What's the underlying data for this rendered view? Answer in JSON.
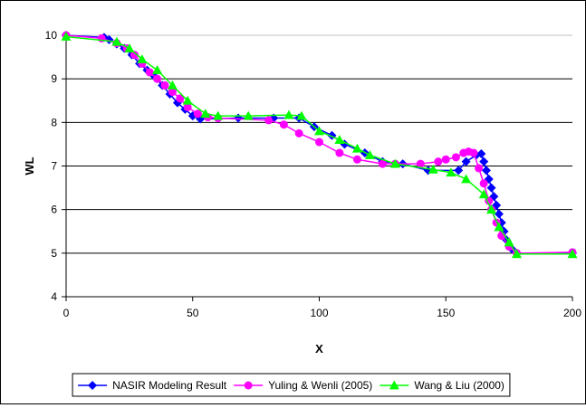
{
  "chart_data": {
    "type": "line",
    "xlabel": "X",
    "ylabel": "WL",
    "xlim": [
      0,
      200
    ],
    "ylim": [
      4,
      10
    ],
    "x_ticks": [
      0,
      50,
      100,
      150,
      200
    ],
    "y_ticks": [
      4,
      5,
      6,
      7,
      8,
      9,
      10
    ],
    "grid": "horizontal",
    "legend_position": "bottom",
    "series": [
      {
        "name": "NASIR Modeling Result",
        "color": "#0000ff",
        "marker": "diamond",
        "points": [
          [
            0,
            10
          ],
          [
            15,
            9.95
          ],
          [
            17,
            9.9
          ],
          [
            20,
            9.8
          ],
          [
            23,
            9.7
          ],
          [
            26,
            9.55
          ],
          [
            29,
            9.35
          ],
          [
            32,
            9.2
          ],
          [
            35,
            9.05
          ],
          [
            38,
            8.85
          ],
          [
            41,
            8.65
          ],
          [
            44,
            8.45
          ],
          [
            47,
            8.3
          ],
          [
            50,
            8.15
          ],
          [
            53,
            8.08
          ],
          [
            68,
            8.1
          ],
          [
            82,
            8.1
          ],
          [
            92,
            8.1
          ],
          [
            98,
            7.9
          ],
          [
            105,
            7.7
          ],
          [
            110,
            7.5
          ],
          [
            118,
            7.3
          ],
          [
            125,
            7.1
          ],
          [
            133,
            7.05
          ],
          [
            143,
            6.9
          ],
          [
            155,
            6.9
          ],
          [
            158,
            7.1
          ],
          [
            162,
            7.25
          ],
          [
            164,
            7.28
          ],
          [
            165,
            7.1
          ],
          [
            166,
            6.9
          ],
          [
            167,
            6.7
          ],
          [
            168,
            6.5
          ],
          [
            169,
            6.3
          ],
          [
            170,
            6.1
          ],
          [
            171,
            5.9
          ],
          [
            172,
            5.7
          ],
          [
            173,
            5.5
          ],
          [
            174,
            5.3
          ],
          [
            176,
            5.1
          ],
          [
            178,
            5.0
          ],
          [
            200,
            5.0
          ]
        ]
      },
      {
        "name": "Yuling & Wenli (2005)",
        "color": "#ff00ff",
        "marker": "circle",
        "points": [
          [
            0,
            10
          ],
          [
            14,
            9.93
          ],
          [
            20,
            9.82
          ],
          [
            24,
            9.7
          ],
          [
            27,
            9.55
          ],
          [
            30,
            9.35
          ],
          [
            33,
            9.15
          ],
          [
            36,
            9.0
          ],
          [
            39,
            8.85
          ],
          [
            42,
            8.7
          ],
          [
            45,
            8.55
          ],
          [
            48,
            8.35
          ],
          [
            52,
            8.2
          ],
          [
            56,
            8.12
          ],
          [
            60,
            8.1
          ],
          [
            80,
            8.05
          ],
          [
            86,
            7.95
          ],
          [
            92,
            7.75
          ],
          [
            100,
            7.55
          ],
          [
            108,
            7.3
          ],
          [
            115,
            7.15
          ],
          [
            125,
            7.05
          ],
          [
            130,
            7.05
          ],
          [
            140,
            7.05
          ],
          [
            147,
            7.1
          ],
          [
            150,
            7.15
          ],
          [
            154,
            7.2
          ],
          [
            157,
            7.3
          ],
          [
            159,
            7.33
          ],
          [
            161,
            7.3
          ],
          [
            163,
            6.95
          ],
          [
            165,
            6.6
          ],
          [
            167,
            6.2
          ],
          [
            168,
            6.0
          ],
          [
            170,
            5.7
          ],
          [
            172,
            5.4
          ],
          [
            175,
            5.15
          ],
          [
            178,
            5.0
          ],
          [
            200,
            5.02
          ]
        ]
      },
      {
        "name": "Wang & Liu (2000)",
        "color": "#00ff00",
        "marker": "triangle",
        "points": [
          [
            0,
            9.97
          ],
          [
            20,
            9.85
          ],
          [
            25,
            9.7
          ],
          [
            30,
            9.45
          ],
          [
            36,
            9.2
          ],
          [
            42,
            8.85
          ],
          [
            48,
            8.5
          ],
          [
            55,
            8.2
          ],
          [
            60,
            8.15
          ],
          [
            72,
            8.15
          ],
          [
            88,
            8.17
          ],
          [
            93,
            8.15
          ],
          [
            100,
            7.8
          ],
          [
            108,
            7.6
          ],
          [
            115,
            7.4
          ],
          [
            120,
            7.25
          ],
          [
            130,
            7.05
          ],
          [
            145,
            6.92
          ],
          [
            152,
            6.85
          ],
          [
            158,
            6.7
          ],
          [
            165,
            6.35
          ],
          [
            168,
            6.0
          ],
          [
            171,
            5.6
          ],
          [
            175,
            5.25
          ],
          [
            178,
            4.98
          ],
          [
            200,
            4.98
          ]
        ]
      }
    ]
  }
}
